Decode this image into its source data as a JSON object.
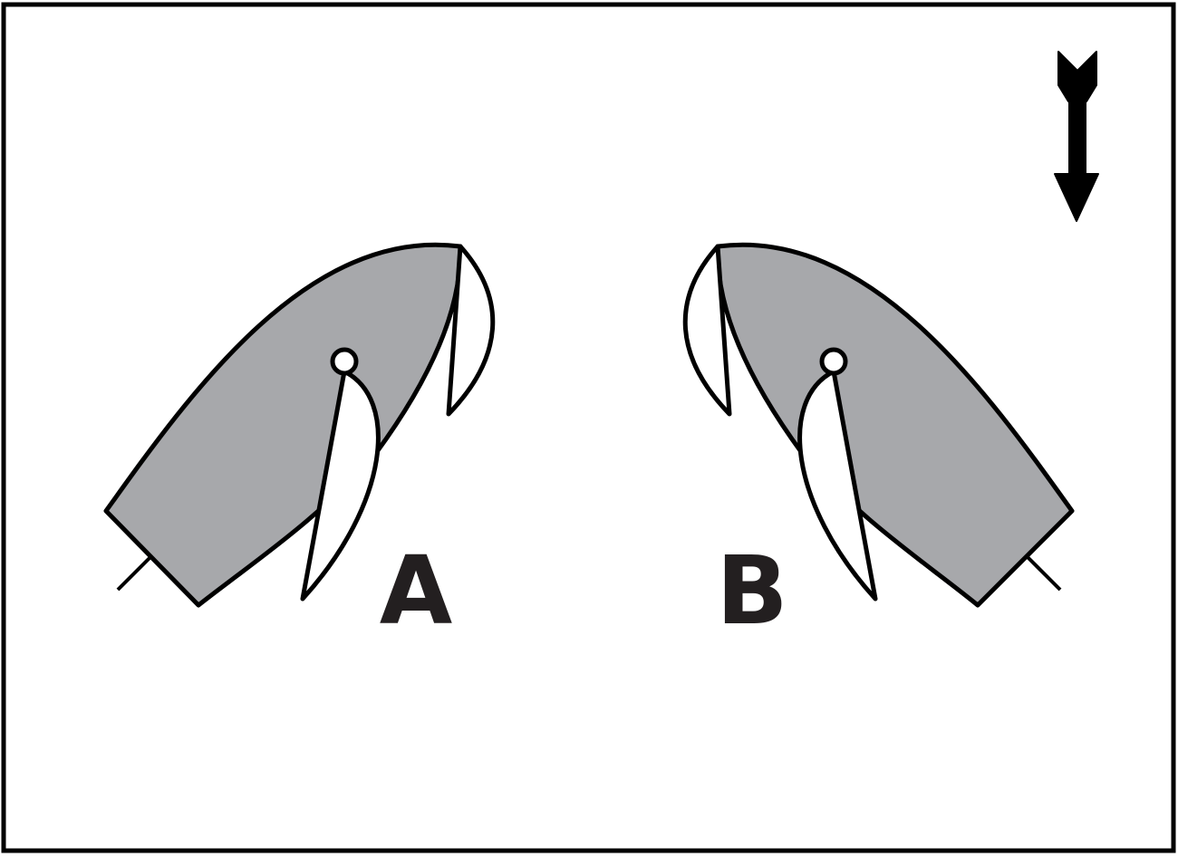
{
  "diagram": {
    "labels": {
      "left_boat": "A",
      "right_boat": "B"
    },
    "icons": {
      "wind_arrow": "wind-direction-arrow-icon"
    },
    "colors": {
      "hull_fill": "#a7a8ab",
      "stroke": "#000000",
      "background": "#ffffff",
      "label": "#231f20"
    }
  }
}
